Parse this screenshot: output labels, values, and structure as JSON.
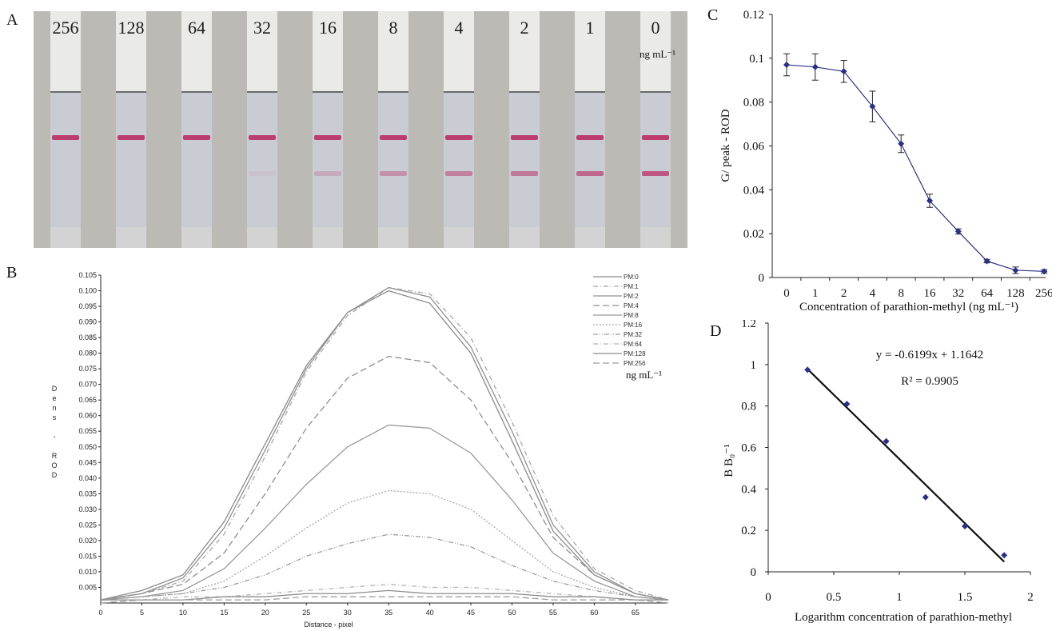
{
  "panels": {
    "a": "A",
    "b": "B",
    "c": "C",
    "d": "D"
  },
  "strip_panel": {
    "labels": [
      "256",
      "128",
      "64",
      "32",
      "16",
      "8",
      "4",
      "2",
      "1",
      "0"
    ],
    "unit": "ng mL⁻¹",
    "test_line_intensity": [
      0,
      0,
      0,
      0.06,
      0.2,
      0.35,
      0.45,
      0.5,
      0.6,
      0.7
    ],
    "colors": {
      "line": "#b8245e",
      "strip": "#c9ccd2",
      "pad": "#eaeae6",
      "background": "#bcbab5"
    }
  },
  "chart_data": [
    {
      "id": "B",
      "type": "line",
      "xlabel": "Distance - pixel",
      "ylabel": "Dens - ROD",
      "xlim": [
        0,
        69
      ],
      "ylim": [
        0,
        0.105
      ],
      "xticks": [
        "0",
        "5",
        "10",
        "15",
        "20",
        "25",
        "30",
        "35",
        "40",
        "45",
        "50",
        "55",
        "60",
        "65"
      ],
      "yticks": [
        "0.005",
        "0.010",
        "0.015",
        "0.020",
        "0.025",
        "0.030",
        "0.035",
        "0.040",
        "0.045",
        "0.050",
        "0.055",
        "0.060",
        "0.065",
        "0.070",
        "0.075",
        "0.080",
        "0.085",
        "0.090",
        "0.095",
        "0.100",
        "0.105"
      ],
      "legend_unit": "ng mL⁻¹",
      "legend_position": "top-right",
      "series": [
        {
          "name": "PM:0",
          "style": "solid",
          "x": [
            0,
            5,
            10,
            15,
            20,
            25,
            30,
            35,
            40,
            45,
            50,
            55,
            60,
            65,
            69
          ],
          "values": [
            0.001,
            0.004,
            0.009,
            0.026,
            0.051,
            0.076,
            0.093,
            0.1,
            0.096,
            0.08,
            0.052,
            0.023,
            0.009,
            0.003,
            0.001
          ]
        },
        {
          "name": "PM:1",
          "style": "dashdot",
          "x": [
            0,
            5,
            10,
            15,
            20,
            25,
            30,
            35,
            40,
            45,
            50,
            55,
            60,
            65,
            69
          ],
          "values": [
            0.001,
            0.003,
            0.007,
            0.022,
            0.047,
            0.074,
            0.092,
            0.101,
            0.099,
            0.085,
            0.058,
            0.028,
            0.011,
            0.004,
            0.001
          ]
        },
        {
          "name": "PM:2",
          "style": "solid",
          "x": [
            0,
            5,
            10,
            15,
            20,
            25,
            30,
            35,
            40,
            45,
            50,
            55,
            60,
            65,
            69
          ],
          "values": [
            0.001,
            0.003,
            0.008,
            0.024,
            0.049,
            0.075,
            0.093,
            0.101,
            0.098,
            0.082,
            0.055,
            0.025,
            0.01,
            0.003,
            0.001
          ]
        },
        {
          "name": "PM:4",
          "style": "dashed",
          "x": [
            0,
            5,
            10,
            15,
            20,
            25,
            30,
            35,
            40,
            45,
            50,
            55,
            60,
            65,
            69
          ],
          "values": [
            0.001,
            0.003,
            0.006,
            0.016,
            0.035,
            0.056,
            0.072,
            0.079,
            0.077,
            0.065,
            0.045,
            0.021,
            0.009,
            0.003,
            0.001
          ]
        },
        {
          "name": "PM:8",
          "style": "solid",
          "x": [
            0,
            5,
            10,
            15,
            20,
            25,
            30,
            35,
            40,
            45,
            50,
            55,
            60,
            65,
            69
          ],
          "values": [
            0.001,
            0.002,
            0.004,
            0.011,
            0.024,
            0.038,
            0.05,
            0.057,
            0.056,
            0.048,
            0.033,
            0.016,
            0.007,
            0.002,
            0.001
          ]
        },
        {
          "name": "PM:16",
          "style": "dotted",
          "x": [
            0,
            5,
            10,
            15,
            20,
            25,
            30,
            35,
            40,
            45,
            50,
            55,
            60,
            65,
            69
          ],
          "values": [
            0.001,
            0.002,
            0.003,
            0.007,
            0.015,
            0.024,
            0.032,
            0.036,
            0.035,
            0.03,
            0.02,
            0.01,
            0.005,
            0.002,
            0.001
          ]
        },
        {
          "name": "PM:32",
          "style": "dashdotdot",
          "x": [
            0,
            5,
            10,
            15,
            20,
            25,
            30,
            35,
            40,
            45,
            50,
            55,
            60,
            65,
            69
          ],
          "values": [
            0.001,
            0.002,
            0.003,
            0.005,
            0.009,
            0.015,
            0.019,
            0.022,
            0.021,
            0.018,
            0.012,
            0.007,
            0.004,
            0.002,
            0.001
          ]
        },
        {
          "name": "PM:64",
          "style": "dashdot",
          "x": [
            0,
            5,
            10,
            15,
            20,
            25,
            30,
            35,
            40,
            45,
            50,
            55,
            60,
            65,
            69
          ],
          "values": [
            0.001,
            0.001,
            0.002,
            0.002,
            0.003,
            0.004,
            0.005,
            0.006,
            0.005,
            0.005,
            0.004,
            0.003,
            0.002,
            0.001,
            0.001
          ]
        },
        {
          "name": "PM:128",
          "style": "solid",
          "x": [
            0,
            5,
            10,
            15,
            20,
            25,
            30,
            35,
            40,
            45,
            50,
            55,
            60,
            65,
            69
          ],
          "values": [
            0.001,
            0.001,
            0.001,
            0.002,
            0.002,
            0.003,
            0.003,
            0.004,
            0.003,
            0.003,
            0.003,
            0.002,
            0.002,
            0.001,
            0.001
          ]
        },
        {
          "name": "PM:256",
          "style": "dashed",
          "x": [
            0,
            5,
            10,
            15,
            20,
            25,
            30,
            35,
            40,
            45,
            50,
            55,
            60,
            65,
            69
          ],
          "values": [
            0.0,
            0.001,
            0.001,
            0.001,
            0.001,
            0.002,
            0.002,
            0.002,
            0.002,
            0.002,
            0.002,
            0.001,
            0.001,
            0.001,
            0.0
          ]
        }
      ]
    },
    {
      "id": "C",
      "type": "line",
      "xlabel": "Concentration of parathion-methyl (ng mL⁻¹)",
      "ylabel": "G/ peak - ROD",
      "ylim": [
        0,
        0.12
      ],
      "yticks": [
        "0",
        "0.02",
        "0.04",
        "0.06",
        "0.08",
        "0.1",
        "0.12"
      ],
      "categories": [
        "0",
        "1",
        "2",
        "4",
        "8",
        "16",
        "32",
        "64",
        "128",
        "256"
      ],
      "values": [
        0.097,
        0.096,
        0.094,
        0.078,
        0.061,
        0.035,
        0.021,
        0.0075,
        0.0033,
        0.0028
      ],
      "errors": [
        0.005,
        0.006,
        0.005,
        0.007,
        0.004,
        0.003,
        0.0012,
        0.0008,
        0.0015,
        0.0008
      ],
      "color": "#2b2f8a"
    },
    {
      "id": "D",
      "type": "scatter",
      "xlabel": "Logarithm concentration of parathion-methyl",
      "ylabel": "B B₀⁻¹",
      "xlim": [
        0,
        2
      ],
      "ylim": [
        0,
        1.2
      ],
      "xticks": [
        "0",
        "0.5",
        "1",
        "1.5",
        "2"
      ],
      "yticks": [
        "0",
        "0.2",
        "0.4",
        "0.6",
        "0.8",
        "1",
        "1.2"
      ],
      "x": [
        0.3,
        0.6,
        0.9,
        1.2,
        1.5,
        1.8
      ],
      "values": [
        0.975,
        0.81,
        0.63,
        0.36,
        0.22,
        0.08
      ],
      "fit": {
        "slope": -0.6199,
        "intercept": 1.1642,
        "x_range": [
          0.3,
          1.8
        ]
      },
      "equation": "y = -0.6199x + 1.1642",
      "r2": "R² = 0.9905",
      "color": "#2b2f8a"
    }
  ]
}
